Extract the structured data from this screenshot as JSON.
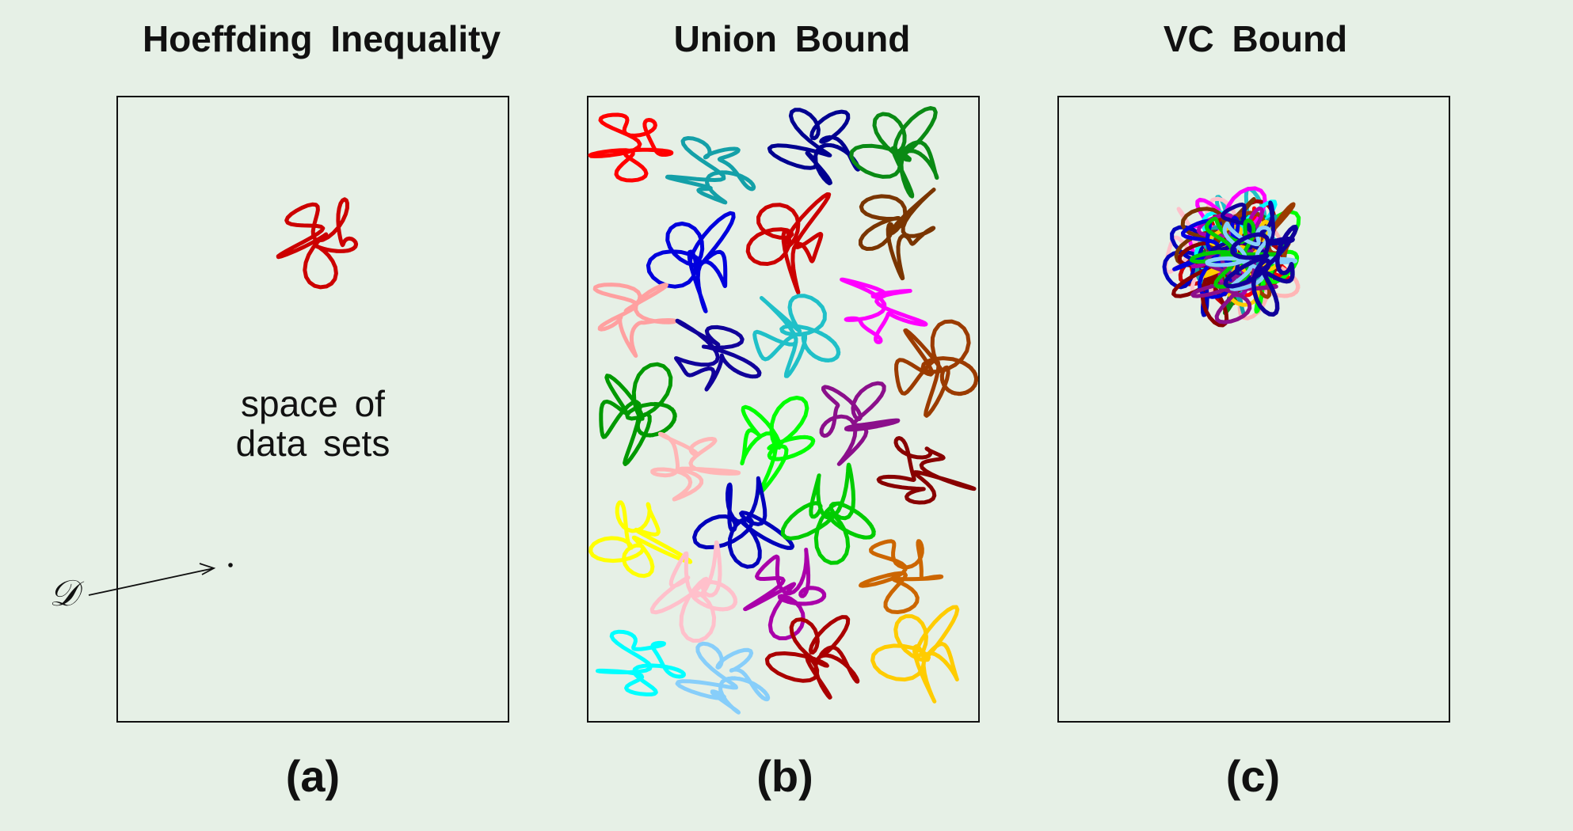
{
  "panels": [
    {
      "title": "Hoeffding  Inequality",
      "caption": "(a)"
    },
    {
      "title": "Union  Bound",
      "caption": "(b)"
    },
    {
      "title": "VC  Bound",
      "caption": "(c)"
    }
  ],
  "space_label": {
    "line1": "space  of",
    "line2": "data  sets"
  },
  "dataset_label": "𝒟",
  "colors": {
    "background": "#e6f0e6",
    "border": "#111111",
    "hoeffding_blob": "#cc0000",
    "palette": [
      "#ff0000",
      "#14a0a8",
      "#000090",
      "#0a8a14",
      "#0000dd",
      "#cc0000",
      "#7a3500",
      "#ffa0a0",
      "#ff00ff",
      "#10009a",
      "#20c0c8",
      "#9b3b00",
      "#009900",
      "#00ff00",
      "#8b0f8b",
      "#ffb6b6",
      "#880000",
      "#ffff00",
      "#0000bb",
      "#00cc00",
      "#ffc0cb",
      "#aa00aa",
      "#cc6600",
      "#00ffff",
      "#87cefa",
      "#aa0000",
      "#ffcc00"
    ]
  }
}
